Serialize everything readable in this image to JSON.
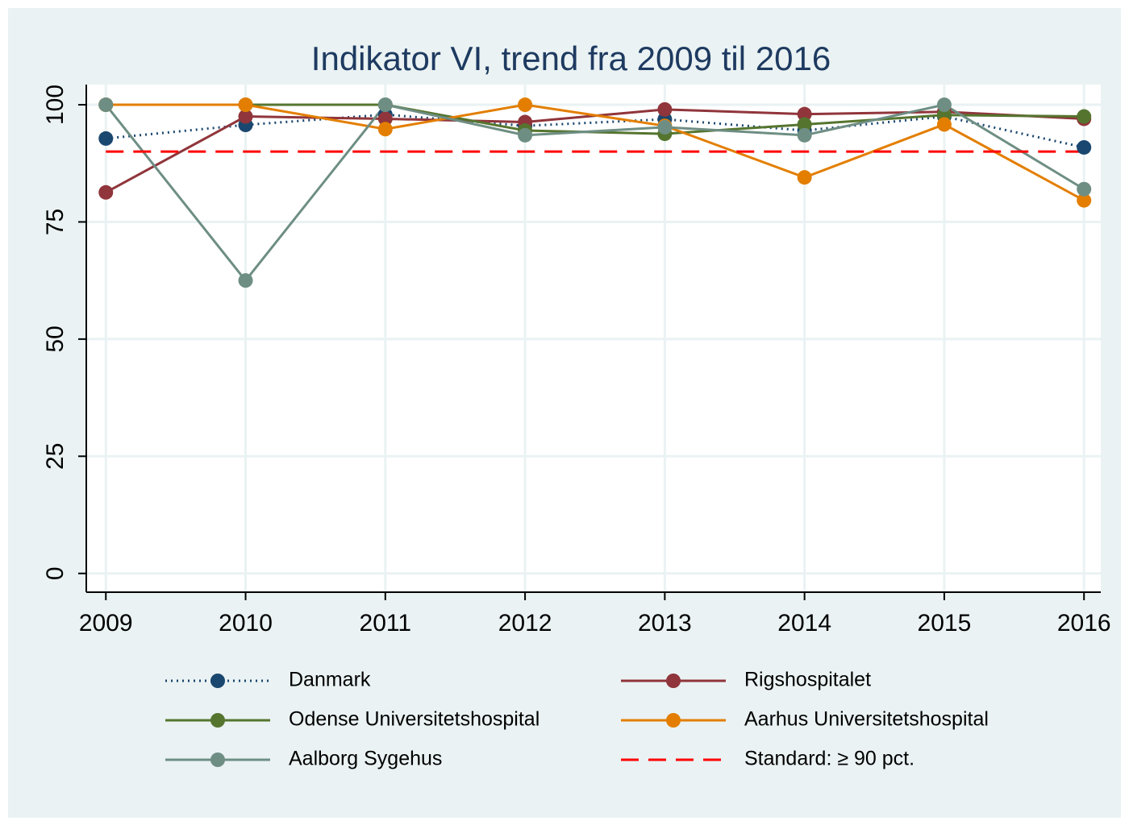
{
  "chart_data": {
    "type": "line",
    "title": "Indikator VI, trend fra 2009 til 2016",
    "x": [
      2009,
      2010,
      2011,
      2012,
      2013,
      2014,
      2015,
      2016
    ],
    "xlim": [
      2008.86,
      2016.12
    ],
    "xticks": [
      2009,
      2010,
      2011,
      2012,
      2013,
      2014,
      2015,
      2016
    ],
    "ylim": [
      -4,
      104.3
    ],
    "yticks": [
      0,
      25,
      50,
      75,
      100
    ],
    "grid": true,
    "legend": "bottom",
    "series": [
      {
        "name": "Danmark",
        "color": "#1a476f",
        "style": "dotted",
        "markers": true,
        "values": [
          92.8,
          95.7,
          97.9,
          95.5,
          96.9,
          94.5,
          97.5,
          90.9
        ]
      },
      {
        "name": "Rigshospitalet",
        "color": "#90353b",
        "style": "solid",
        "markers": true,
        "values": [
          81.3,
          97.5,
          97,
          96.3,
          99,
          98,
          98.5,
          97
        ]
      },
      {
        "name": "Odense Universitetshospital",
        "color": "#55752f",
        "style": "solid",
        "markers": true,
        "values": [
          100,
          100,
          100,
          94.5,
          93.8,
          95.8,
          97.8,
          97.5
        ]
      },
      {
        "name": "Aarhus Universitetshospital",
        "color": "#e37e00",
        "style": "solid",
        "markers": true,
        "values": [
          100,
          100,
          94.8,
          100,
          95.5,
          84.5,
          95.8,
          79.6
        ]
      },
      {
        "name": "Aalborg Sygehus",
        "color": "#6e8e84",
        "style": "solid",
        "markers": true,
        "values": [
          100,
          62.5,
          100,
          93.5,
          95.2,
          93.5,
          100,
          82
        ]
      },
      {
        "name": "Standard: ≥ 90 pct.",
        "color": "#ff0000",
        "style": "dashed",
        "markers": false,
        "values": [
          90,
          90,
          90,
          90,
          90,
          90,
          90,
          90
        ]
      }
    ]
  }
}
